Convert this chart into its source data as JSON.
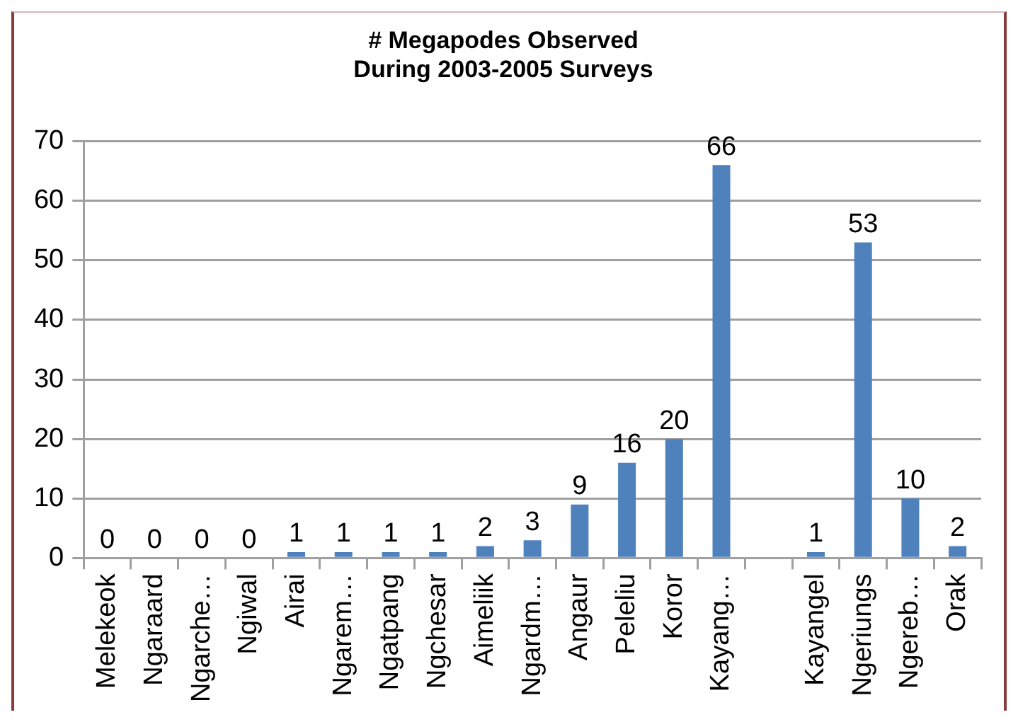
{
  "chart_data": {
    "type": "bar",
    "title": "# Megapodes Observed\nDuring 2003-2005 Surveys",
    "categories": [
      "Melekeok",
      "Ngaraard",
      "Ngarche…",
      "Ngiwal",
      "Airai",
      "Ngarem…",
      "Ngatpang",
      "Ngchesar",
      "Aimeliik",
      "Ngardm…",
      "Angaur",
      "Peleliu",
      "Koror",
      "Kayang…",
      null,
      "Kayangel",
      "Ngeriungs",
      "Ngereb…",
      "Orak"
    ],
    "values": [
      0,
      0,
      0,
      0,
      1,
      1,
      1,
      1,
      2,
      3,
      9,
      16,
      20,
      66,
      null,
      1,
      53,
      10,
      2
    ],
    "color": "#4f81bd",
    "ylim": [
      0,
      70
    ],
    "yticks": [
      0,
      10,
      20,
      30,
      40,
      50,
      60,
      70
    ],
    "grid": "y",
    "data_labels": true,
    "legend": false
  }
}
